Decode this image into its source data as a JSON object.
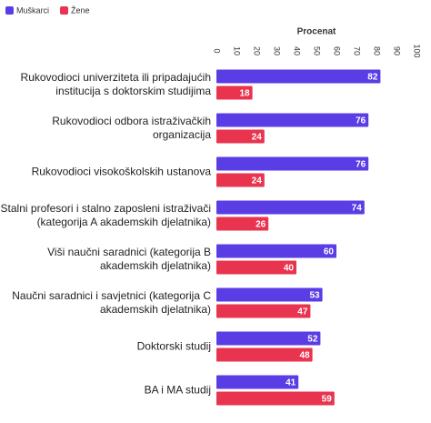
{
  "chart_data": {
    "type": "bar",
    "orientation": "horizontal",
    "x_label": "Procenat",
    "categories": [
      "Rukovodioci univerziteta ili pripadajućih institucija s doktorskim studijima",
      "Rukovodioci odbora istraživačkih organizacija",
      "Rukovodioci visokoškolskih ustanova",
      "Stalni profesori i stalno zaposleni istraživači (kategorija A akademskih djelatnika)",
      "Viši naučni saradnici (kategorija B akademskih djelatnika)",
      "Naučni saradnici i savjetnici (kategorija C akademskih djelatnika)",
      "Doktorski studij",
      "BA i MA studij"
    ],
    "series": [
      {
        "name": "Muškarci",
        "color": "#5b3de6",
        "values": [
          82,
          76,
          76,
          74,
          60,
          53,
          52,
          41
        ]
      },
      {
        "name": "Žene",
        "color": "#e8344f",
        "values": [
          18,
          24,
          24,
          26,
          40,
          47,
          48,
          59
        ]
      }
    ],
    "xlim": [
      0,
      100
    ],
    "xticks": [
      0,
      10,
      20,
      30,
      40,
      50,
      60,
      70,
      80,
      90,
      100
    ],
    "grid": false,
    "legend": "top-left"
  }
}
